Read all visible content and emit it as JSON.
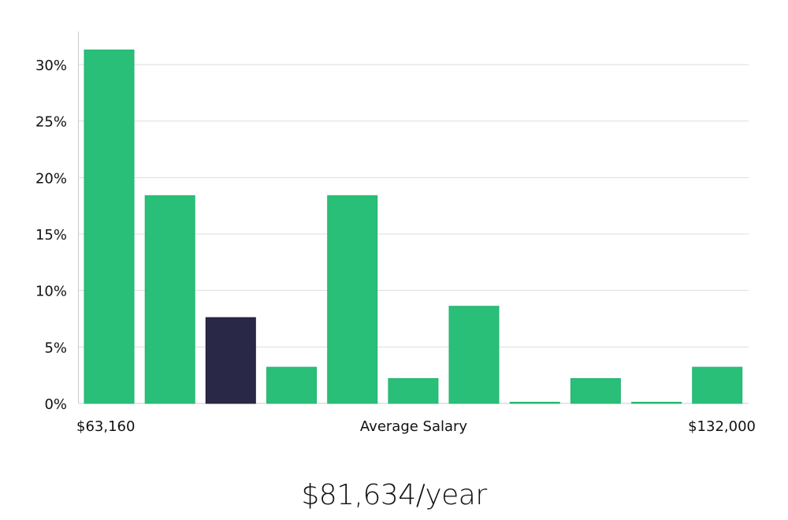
{
  "chart_data": {
    "type": "bar",
    "xlabel": "Average Salary",
    "x_range_labels": {
      "min": "$63,160",
      "max": "$132,000"
    },
    "values": [
      31.3,
      18.4,
      7.6,
      3.2,
      18.4,
      2.2,
      8.6,
      0,
      2.2,
      0,
      3.2
    ],
    "highlight_index": 2,
    "ylim": [
      0,
      30
    ],
    "y_ticks": [
      0,
      5,
      10,
      15,
      20,
      25,
      30
    ],
    "y_tick_labels": [
      "0%",
      "5%",
      "10%",
      "15%",
      "20%",
      "25%",
      "30%"
    ],
    "grid": true,
    "colors": {
      "bar": "#2abf78",
      "highlight": "#2a2847",
      "grid": "#dddddd",
      "axis": "#cccccc"
    }
  },
  "summary": {
    "salary_text": "$81,634/year"
  }
}
